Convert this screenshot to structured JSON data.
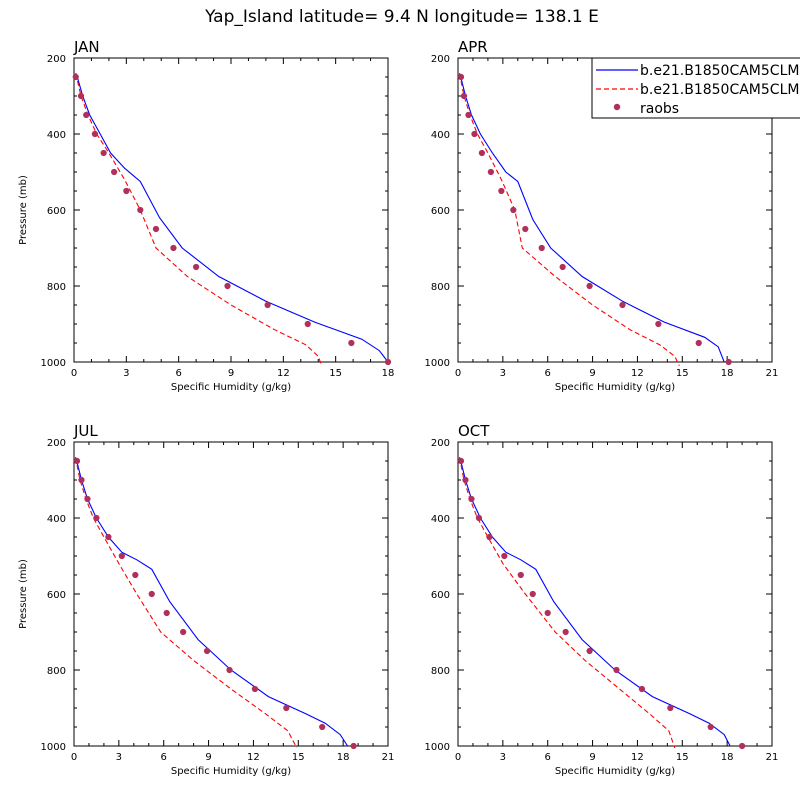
{
  "suptitle": "Yap_Island  latitude= 9.4 N longitude= 138.1 E",
  "legend": {
    "placement": "top-right",
    "entries": [
      "b.e21.B1850CAM5CLM",
      "b.e21.B1850CAM5CLM",
      "raobs"
    ]
  },
  "colors": {
    "model1": "#0000ff",
    "model2": "#ff0000",
    "obs": "#b0305a"
  },
  "chart_data": [
    {
      "type": "line",
      "title": "JAN",
      "xlabel": "Specific Humidity (g/kg)",
      "ylabel": "Pressure (mb)",
      "xlim": [
        0,
        18
      ],
      "ylim": [
        1000,
        200
      ],
      "xticks": [
        0,
        3,
        6,
        9,
        12,
        15,
        18
      ],
      "yticks": [
        200,
        400,
        600,
        800,
        1000
      ],
      "series": [
        {
          "style": "solid",
          "color": "#0000ff",
          "x": [
            0.1,
            0.25,
            0.5,
            0.9,
            1.5,
            2.1,
            2.9,
            3.8,
            4.9,
            6.2,
            8.3,
            11.0,
            13.8,
            16.5,
            17.5,
            18.0
          ],
          "y": [
            240,
            260,
            300,
            350,
            400,
            450,
            490,
            525,
            620,
            700,
            775,
            840,
            895,
            940,
            970,
            1000
          ]
        },
        {
          "style": "dashed",
          "color": "#ff0000",
          "x": [
            0.1,
            0.2,
            0.4,
            0.8,
            1.3,
            2.0,
            2.9,
            3.8,
            4.7,
            6.5,
            9.0,
            11.5,
            13.3,
            14.0,
            14.2
          ],
          "y": [
            240,
            260,
            300,
            350,
            400,
            450,
            520,
            600,
            700,
            775,
            850,
            915,
            955,
            985,
            1010
          ]
        },
        {
          "style": "dots",
          "color": "#b0305a",
          "x": [
            0.1,
            0.4,
            0.7,
            1.2,
            1.7,
            2.3,
            3.0,
            3.8,
            4.7,
            5.7,
            7.0,
            8.8,
            11.1,
            13.4,
            15.9,
            18.0
          ],
          "y": [
            250,
            300,
            350,
            400,
            450,
            500,
            550,
            600,
            650,
            700,
            750,
            800,
            850,
            900,
            950,
            1000
          ]
        }
      ]
    },
    {
      "type": "line",
      "title": "APR",
      "xlabel": "Specific Humidity (g/kg)",
      "ylabel": "",
      "xlim": [
        0,
        21
      ],
      "ylim": [
        1000,
        200
      ],
      "xticks": [
        0,
        3,
        6,
        9,
        12,
        15,
        18,
        21
      ],
      "yticks": [
        200,
        400,
        600,
        800,
        1000
      ],
      "series": [
        {
          "style": "solid",
          "color": "#0000ff",
          "x": [
            0.1,
            0.25,
            0.5,
            0.9,
            1.5,
            2.3,
            3.2,
            4.0,
            5.0,
            6.2,
            8.3,
            11.0,
            13.8,
            16.5,
            17.4,
            17.8
          ],
          "y": [
            240,
            260,
            300,
            350,
            400,
            450,
            500,
            525,
            625,
            700,
            775,
            840,
            895,
            935,
            960,
            1000
          ]
        },
        {
          "style": "dashed",
          "color": "#ff0000",
          "x": [
            0.1,
            0.2,
            0.4,
            0.8,
            1.3,
            2.0,
            2.9,
            3.8,
            4.3,
            6.5,
            9.0,
            11.5,
            13.5,
            14.5,
            14.8
          ],
          "y": [
            240,
            260,
            300,
            350,
            400,
            450,
            520,
            600,
            700,
            775,
            850,
            915,
            955,
            985,
            1010
          ]
        },
        {
          "style": "dots",
          "color": "#b0305a",
          "x": [
            0.2,
            0.4,
            0.7,
            1.1,
            1.6,
            2.2,
            2.9,
            3.7,
            4.5,
            5.6,
            7.0,
            8.8,
            11.0,
            13.4,
            16.1,
            18.1
          ],
          "y": [
            250,
            300,
            350,
            400,
            450,
            500,
            550,
            600,
            650,
            700,
            750,
            800,
            850,
            900,
            950,
            1000
          ]
        }
      ]
    },
    {
      "type": "line",
      "title": "JUL",
      "xlabel": "Specific Humidity (g/kg)",
      "ylabel": "Pressure (mb)",
      "xlim": [
        0,
        21
      ],
      "ylim": [
        1000,
        200
      ],
      "xticks": [
        0,
        3,
        6,
        9,
        12,
        15,
        18,
        21
      ],
      "yticks": [
        200,
        400,
        600,
        800,
        1000
      ],
      "series": [
        {
          "style": "solid",
          "color": "#0000ff",
          "x": [
            0.1,
            0.25,
            0.5,
            0.9,
            1.5,
            2.3,
            3.2,
            4.2,
            5.2,
            6.4,
            8.3,
            10.5,
            13.0,
            15.5,
            16.8,
            17.8,
            18.3
          ],
          "y": [
            240,
            260,
            300,
            350,
            400,
            450,
            490,
            510,
            535,
            620,
            720,
            800,
            870,
            915,
            940,
            970,
            1000
          ]
        },
        {
          "style": "dashed",
          "color": "#ff0000",
          "x": [
            0.1,
            0.2,
            0.4,
            0.8,
            1.3,
            2.0,
            3.0,
            4.2,
            5.8,
            8.0,
            10.5,
            12.8,
            14.3,
            14.9
          ],
          "y": [
            240,
            260,
            300,
            350,
            400,
            450,
            520,
            600,
            700,
            775,
            850,
            915,
            960,
            1005
          ]
        },
        {
          "style": "dots",
          "color": "#b0305a",
          "x": [
            0.2,
            0.5,
            0.9,
            1.5,
            2.3,
            3.2,
            4.1,
            5.2,
            6.2,
            7.3,
            8.9,
            10.4,
            12.1,
            14.2,
            16.6,
            18.7
          ],
          "y": [
            250,
            300,
            350,
            400,
            450,
            500,
            550,
            600,
            650,
            700,
            750,
            800,
            850,
            900,
            950,
            1000
          ]
        }
      ]
    },
    {
      "type": "line",
      "title": "OCT",
      "xlabel": "Specific Humidity (g/kg)",
      "ylabel": "",
      "xlim": [
        0,
        21
      ],
      "ylim": [
        1000,
        200
      ],
      "xticks": [
        0,
        3,
        6,
        9,
        12,
        15,
        18,
        21
      ],
      "yticks": [
        200,
        400,
        600,
        800,
        1000
      ],
      "series": [
        {
          "style": "solid",
          "color": "#0000ff",
          "x": [
            0.1,
            0.25,
            0.5,
            0.9,
            1.5,
            2.3,
            3.2,
            4.2,
            5.2,
            6.4,
            8.3,
            10.5,
            13.0,
            15.5,
            16.8,
            17.8,
            18.2
          ],
          "y": [
            240,
            260,
            300,
            350,
            400,
            450,
            490,
            510,
            535,
            620,
            720,
            800,
            870,
            915,
            940,
            970,
            1000
          ]
        },
        {
          "style": "dashed",
          "color": "#ff0000",
          "x": [
            0.1,
            0.2,
            0.4,
            0.8,
            1.3,
            2.0,
            3.0,
            4.5,
            6.5,
            8.5,
            10.8,
            12.8,
            14.1,
            14.5
          ],
          "y": [
            240,
            260,
            300,
            350,
            400,
            450,
            520,
            600,
            700,
            775,
            850,
            915,
            960,
            1005
          ]
        },
        {
          "style": "dots",
          "color": "#b0305a",
          "x": [
            0.2,
            0.5,
            0.9,
            1.4,
            2.1,
            3.1,
            4.2,
            5.0,
            6.0,
            7.2,
            8.8,
            10.6,
            12.3,
            14.2,
            16.9,
            19.0
          ],
          "y": [
            250,
            300,
            350,
            400,
            450,
            500,
            550,
            600,
            650,
            700,
            750,
            800,
            850,
            900,
            950,
            1000
          ]
        }
      ]
    }
  ]
}
